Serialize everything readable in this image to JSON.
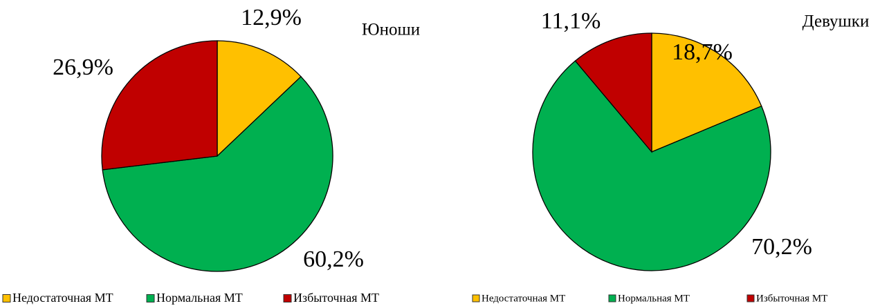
{
  "chart_data": [
    {
      "type": "pie",
      "title": "Юноши",
      "categories": [
        "Недостаточная МТ",
        "Нормальная МТ",
        "Избыточная МТ"
      ],
      "values": [
        12.9,
        60.2,
        26.9
      ],
      "value_labels": [
        "12,9%",
        "60,2%",
        "26,9%"
      ],
      "colors": [
        "#FFC000",
        "#00B050",
        "#C00000"
      ],
      "legend": "bottom"
    },
    {
      "type": "pie",
      "title": "Девушки",
      "categories": [
        "Недостаточная МТ",
        "Нормальная МТ",
        "Избыточная МТ"
      ],
      "values": [
        18.7,
        70.2,
        11.1
      ],
      "value_labels": [
        "18,7%",
        "70,2%",
        "11,1%"
      ],
      "colors": [
        "#FFC000",
        "#00B050",
        "#C00000"
      ],
      "legend": "bottom"
    }
  ]
}
